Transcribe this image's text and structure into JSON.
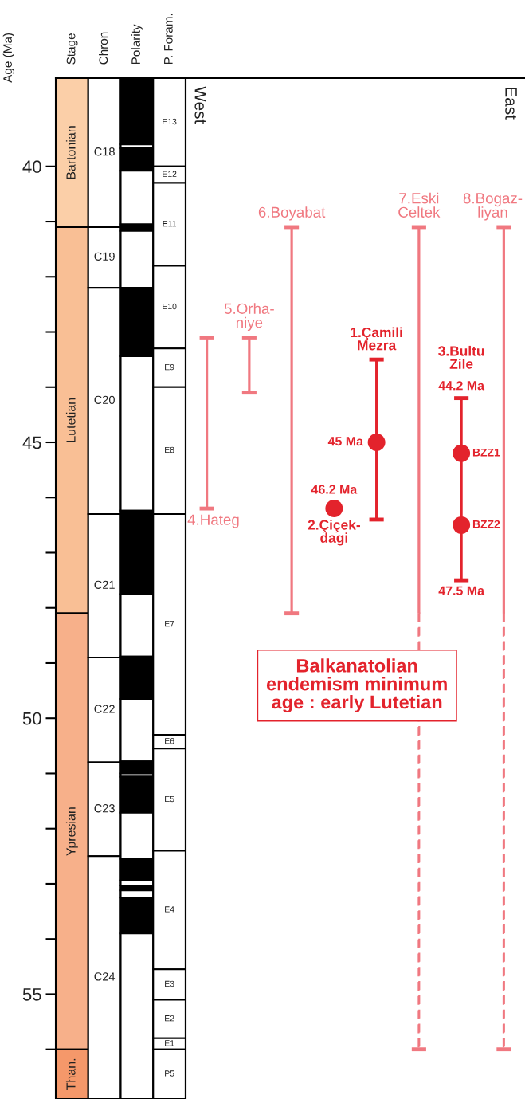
{
  "chart_data": [
    {
      "type": "bar",
      "categories": [
        "Stage",
        "Chron",
        "Polarity",
        "P. Foram."
      ],
      "ylim": [
        56.9,
        38.4
      ],
      "ylabel": "Age (Ma)",
      "yticks": [
        40,
        {
          "value": 41,
          "label": null
        },
        {
          "value": 42,
          "label": null
        },
        {
          "value": 43,
          "label": null
        },
        {
          "value": 44,
          "label": null
        },
        45,
        {
          "value": 46,
          "label": null
        },
        {
          "value": 47,
          "label": null
        },
        {
          "value": 48,
          "label": null
        },
        {
          "value": 49,
          "label": null
        },
        50,
        {
          "value": 51,
          "label": null
        },
        {
          "value": 52,
          "label": null
        },
        {
          "value": 53,
          "label": null
        },
        {
          "value": 54,
          "label": null
        },
        55,
        {
          "value": 56,
          "label": null
        }
      ],
      "series": [
        {
          "name": "Bartonian",
          "color": "#fbcfa8",
          "base": [
            38.4,
            null,
            null,
            null
          ],
          "values": [
            2.7,
            null,
            null,
            null
          ]
        },
        {
          "name": "Lutetian",
          "color": "#f9bf95",
          "base": [
            41.1,
            null,
            null,
            null
          ],
          "values": [
            7.0,
            null,
            null,
            null
          ]
        },
        {
          "name": "Ypresian",
          "color": "#f7b08a",
          "base": [
            48.1,
            null,
            null,
            null
          ],
          "values": [
            7.9,
            null,
            null,
            null
          ]
        },
        {
          "name": "Than.",
          "color": "#f5986a",
          "base": [
            56.0,
            null,
            null,
            null
          ],
          "values": [
            0.9,
            null,
            null,
            null
          ]
        },
        {
          "name": "C18",
          "color": "#ffffff",
          "base": [
            null,
            38.4,
            null,
            null
          ],
          "values": [
            null,
            2.7,
            null,
            null
          ]
        },
        {
          "name": "C19",
          "color": "#ffffff",
          "base": [
            null,
            41.1,
            null,
            null
          ],
          "values": [
            null,
            1.1,
            null,
            null
          ]
        },
        {
          "name": "C20",
          "color": "#ffffff",
          "base": [
            null,
            42.2,
            null,
            null
          ],
          "values": [
            null,
            4.1,
            null,
            null
          ]
        },
        {
          "name": "C21",
          "color": "#ffffff",
          "base": [
            null,
            46.3,
            null,
            null
          ],
          "values": [
            null,
            2.6,
            null,
            null
          ]
        },
        {
          "name": "C22",
          "color": "#ffffff",
          "base": [
            null,
            48.9,
            null,
            null
          ],
          "values": [
            null,
            1.9,
            null,
            null
          ]
        },
        {
          "name": "C23",
          "color": "#ffffff",
          "base": [
            null,
            50.8,
            null,
            null
          ],
          "values": [
            null,
            1.7,
            null,
            null
          ]
        },
        {
          "name": "C24",
          "color": "#ffffff",
          "base": [
            null,
            52.5,
            null,
            null
          ],
          "values": [
            null,
            4.4,
            null,
            null
          ]
        },
        {
          "color": "#000000",
          "base": [
            null,
            null,
            38.4,
            null
          ],
          "values": [
            null,
            null,
            1.2,
            null
          ]
        },
        {
          "color": "#ffffff",
          "base": [
            null,
            null,
            39.6,
            null
          ],
          "values": [
            null,
            null,
            0.07,
            null
          ]
        },
        {
          "color": "#000000",
          "base": [
            null,
            null,
            39.67,
            null
          ],
          "values": [
            null,
            null,
            0.41,
            null
          ]
        },
        {
          "color": "#ffffff",
          "base": [
            null,
            null,
            40.08,
            null
          ],
          "values": [
            null,
            null,
            0.97,
            null
          ]
        },
        {
          "color": "#000000",
          "base": [
            null,
            null,
            41.05,
            null
          ],
          "values": [
            null,
            null,
            0.12,
            null
          ]
        },
        {
          "color": "#ffffff",
          "base": [
            null,
            null,
            41.17,
            null
          ],
          "values": [
            null,
            null,
            1.03,
            null
          ]
        },
        {
          "color": "#000000",
          "base": [
            null,
            null,
            42.2,
            null
          ],
          "values": [
            null,
            null,
            1.24,
            null
          ]
        },
        {
          "color": "#ffffff",
          "base": [
            null,
            null,
            43.44,
            null
          ],
          "values": [
            null,
            null,
            2.8,
            null
          ]
        },
        {
          "color": "#000000",
          "base": [
            null,
            null,
            46.24,
            null
          ],
          "values": [
            null,
            null,
            1.51,
            null
          ]
        },
        {
          "color": "#ffffff",
          "base": [
            null,
            null,
            47.75,
            null
          ],
          "values": [
            null,
            null,
            1.13,
            null
          ]
        },
        {
          "color": "#000000",
          "base": [
            null,
            null,
            48.88,
            null
          ],
          "values": [
            null,
            null,
            0.77,
            null
          ]
        },
        {
          "color": "#ffffff",
          "base": [
            null,
            null,
            49.65,
            null
          ],
          "values": [
            null,
            null,
            1.13,
            null
          ]
        },
        {
          "color": "#000000",
          "base": [
            null,
            null,
            50.78,
            null
          ],
          "values": [
            null,
            null,
            0.22,
            null
          ]
        },
        {
          "color": "#ffffff",
          "base": [
            null,
            null,
            51.0,
            null
          ],
          "values": [
            null,
            null,
            0.06,
            null
          ]
        },
        {
          "color": "#000000",
          "base": [
            null,
            null,
            51.06,
            null
          ],
          "values": [
            null,
            null,
            0.65,
            null
          ]
        },
        {
          "color": "#ffffff",
          "base": [
            null,
            null,
            51.71,
            null
          ],
          "values": [
            null,
            null,
            0.84,
            null
          ]
        },
        {
          "color": "#000000",
          "base": [
            null,
            null,
            52.55,
            null
          ],
          "values": [
            null,
            null,
            0.39,
            null
          ]
        },
        {
          "color": "#ffffff",
          "base": [
            null,
            null,
            52.94,
            null
          ],
          "values": [
            null,
            null,
            0.09,
            null
          ]
        },
        {
          "color": "#000000",
          "base": [
            null,
            null,
            53.03,
            null
          ],
          "values": [
            null,
            null,
            0.09,
            null
          ]
        },
        {
          "color": "#ffffff",
          "base": [
            null,
            null,
            53.12,
            null
          ],
          "values": [
            null,
            null,
            0.13,
            null
          ]
        },
        {
          "color": "#000000",
          "base": [
            null,
            null,
            53.25,
            null
          ],
          "values": [
            null,
            null,
            0.65,
            null
          ]
        },
        {
          "color": "#ffffff",
          "base": [
            null,
            null,
            53.9,
            null
          ],
          "values": [
            null,
            null,
            3.0,
            null
          ]
        },
        {
          "name": "E13",
          "color": "#ffffff",
          "base": [
            null,
            null,
            null,
            38.4
          ],
          "values": [
            null,
            null,
            null,
            1.6
          ]
        },
        {
          "name": "E12",
          "color": "#ffffff",
          "base": [
            null,
            null,
            null,
            40.0
          ],
          "values": [
            null,
            null,
            null,
            0.3
          ]
        },
        {
          "name": "E11",
          "color": "#ffffff",
          "base": [
            null,
            null,
            null,
            40.3
          ],
          "values": [
            null,
            null,
            null,
            1.5
          ]
        },
        {
          "name": "E10",
          "color": "#ffffff",
          "base": [
            null,
            null,
            null,
            41.8
          ],
          "values": [
            null,
            null,
            null,
            1.5
          ]
        },
        {
          "name": "E9",
          "color": "#ffffff",
          "base": [
            null,
            null,
            null,
            43.3
          ],
          "values": [
            null,
            null,
            null,
            0.7
          ]
        },
        {
          "name": "E8",
          "color": "#ffffff",
          "base": [
            null,
            null,
            null,
            44.0
          ],
          "values": [
            null,
            null,
            null,
            2.3
          ]
        },
        {
          "name": "E7",
          "color": "#ffffff",
          "base": [
            null,
            null,
            null,
            46.3
          ],
          "values": [
            null,
            null,
            null,
            4.0
          ]
        },
        {
          "name": "E6",
          "color": "#ffffff",
          "base": [
            null,
            null,
            null,
            50.3
          ],
          "values": [
            null,
            null,
            null,
            0.25
          ]
        },
        {
          "name": "E5",
          "color": "#ffffff",
          "base": [
            null,
            null,
            null,
            50.55
          ],
          "values": [
            null,
            null,
            null,
            1.85
          ]
        },
        {
          "name": "E4",
          "color": "#ffffff",
          "base": [
            null,
            null,
            null,
            52.4
          ],
          "values": [
            null,
            null,
            null,
            2.15
          ]
        },
        {
          "name": "E3",
          "color": "#ffffff",
          "base": [
            null,
            null,
            null,
            54.55
          ],
          "values": [
            null,
            null,
            null,
            0.55
          ]
        },
        {
          "name": "E2",
          "color": "#ffffff",
          "base": [
            null,
            null,
            null,
            55.1
          ],
          "values": [
            null,
            null,
            null,
            0.7
          ]
        },
        {
          "name": "E1",
          "color": "#ffffff",
          "base": [
            null,
            null,
            null,
            55.8
          ],
          "values": [
            null,
            null,
            null,
            0.2
          ]
        },
        {
          "name": "P5",
          "color": "#ffffff",
          "base": [
            null,
            null,
            null,
            56.0
          ],
          "values": [
            null,
            null,
            null,
            0.9
          ]
        }
      ]
    },
    {
      "type": "bar",
      "categories": [
        "4.Hateg",
        "5.Orha-\nniye",
        "6.Boyabat",
        "2.Çiçek-\ndagi",
        "1.Çamili\nMezra",
        "7.Eski\nCeltek",
        "3.Bultu\nZile",
        "8.Bogaz-\nliyan"
      ],
      "ylim": [
        56.9,
        38.4
      ],
      "tick_labels": "x",
      "marker": "circle",
      "series": [
        {
          "type": "bar",
          "base": [
            43.1,
            43.1,
            41.1,
            null,
            43.5,
            41.1,
            44.2,
            41.1
          ],
          "values": [
            3.1,
            1.0,
            7.0,
            null,
            2.9,
            7.0,
            3.3,
            7.0
          ],
          "colors": [
            "#f07880",
            "#f07880",
            "#f07880",
            null,
            "#e3232c",
            "#f07880",
            "#e3232c",
            "#f07880"
          ]
        },
        {
          "type": "bar",
          "line_style": "dashed",
          "base": [
            null,
            null,
            null,
            null,
            null,
            48.1,
            null,
            48.1
          ],
          "values": [
            null,
            null,
            null,
            null,
            null,
            7.9,
            null,
            7.9
          ],
          "color": "#f07880"
        },
        {
          "type": "scatter",
          "color": "#e3232c",
          "values": [
            null,
            null,
            null,
            46.2,
            45,
            null,
            45.2,
            null
          ],
          "value_labels": [
            null,
            null,
            null,
            "46.2 Ma",
            "45 Ma",
            null,
            "BZZ1",
            null
          ]
        },
        {
          "type": "scatter",
          "color": "#e3232c",
          "values": [
            null,
            null,
            null,
            null,
            null,
            null,
            46.5,
            null
          ],
          "value_labels": [
            null,
            null,
            null,
            null,
            null,
            null,
            "BZZ2",
            null
          ]
        }
      ],
      "annotations": [
        "West",
        "East",
        "Balkanatolian\nendemism minimum\nage : early Lutetian",
        "44.2 Ma",
        "47.5 Ma"
      ]
    }
  ]
}
